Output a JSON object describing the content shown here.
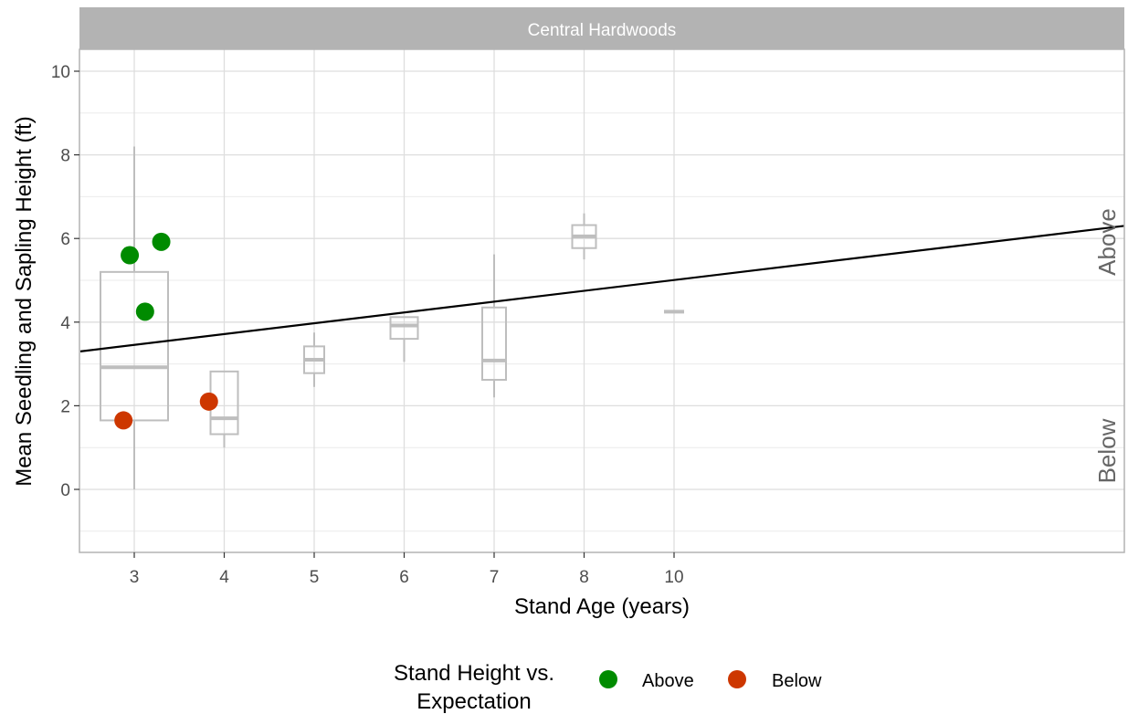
{
  "chart_data": {
    "type": "scatter",
    "facet_title": "Central Hardwoods",
    "xlabel": "Stand Age (years)",
    "ylabel": "Mean Seedling and Sapling Height (ft)",
    "x_categories": [
      "3",
      "4",
      "5",
      "6",
      "7",
      "8",
      "10"
    ],
    "ylim": [
      -1.5,
      10.5
    ],
    "y_ticks": [
      0,
      2,
      4,
      6,
      8,
      10
    ],
    "grid": true,
    "boxplots": [
      {
        "x": "3",
        "whisker_low": 0.0,
        "q1": 1.65,
        "median": 2.92,
        "q3": 5.2,
        "whisker_high": 8.2
      },
      {
        "x": "4",
        "whisker_low": 1.0,
        "q1": 1.32,
        "median": 1.7,
        "q3": 2.82,
        "whisker_high": 2.82
      },
      {
        "x": "5",
        "whisker_low": 2.45,
        "q1": 2.78,
        "median": 3.1,
        "q3": 3.42,
        "whisker_high": 3.75
      },
      {
        "x": "6",
        "whisker_low": 3.05,
        "q1": 3.6,
        "median": 3.92,
        "q3": 4.12,
        "whisker_high": 4.12
      },
      {
        "x": "7",
        "whisker_low": 2.2,
        "q1": 2.62,
        "median": 3.08,
        "q3": 4.35,
        "whisker_high": 5.62
      },
      {
        "x": "8",
        "whisker_low": 5.5,
        "q1": 5.77,
        "median": 6.05,
        "q3": 6.32,
        "whisker_high": 6.6
      },
      {
        "x": "10",
        "whisker_low": 4.25,
        "q1": 4.25,
        "median": 4.25,
        "q3": 4.25,
        "whisker_high": 4.25
      }
    ],
    "trend_line": {
      "x_start": 2.4,
      "y_start": 3.3,
      "x_end": 14.0,
      "y_end": 6.3
    },
    "series": [
      {
        "name": "Above",
        "color": "#008b00",
        "points": [
          {
            "x": 2.95,
            "y": 5.6
          },
          {
            "x": 3.12,
            "y": 4.25
          },
          {
            "x": 3.3,
            "y": 5.92
          }
        ]
      },
      {
        "name": "Below",
        "color": "#cd3700",
        "points": [
          {
            "x": 2.88,
            "y": 1.65
          },
          {
            "x": 3.83,
            "y": 2.1
          }
        ]
      }
    ],
    "region_labels": {
      "above": "Above",
      "below": "Below"
    },
    "legend": {
      "title_line1": "Stand Height vs.",
      "title_line2": "Expectation",
      "position": "bottom",
      "entries": [
        {
          "label": "Above",
          "color": "#008b00"
        },
        {
          "label": "Below",
          "color": "#cd3700"
        }
      ]
    }
  }
}
